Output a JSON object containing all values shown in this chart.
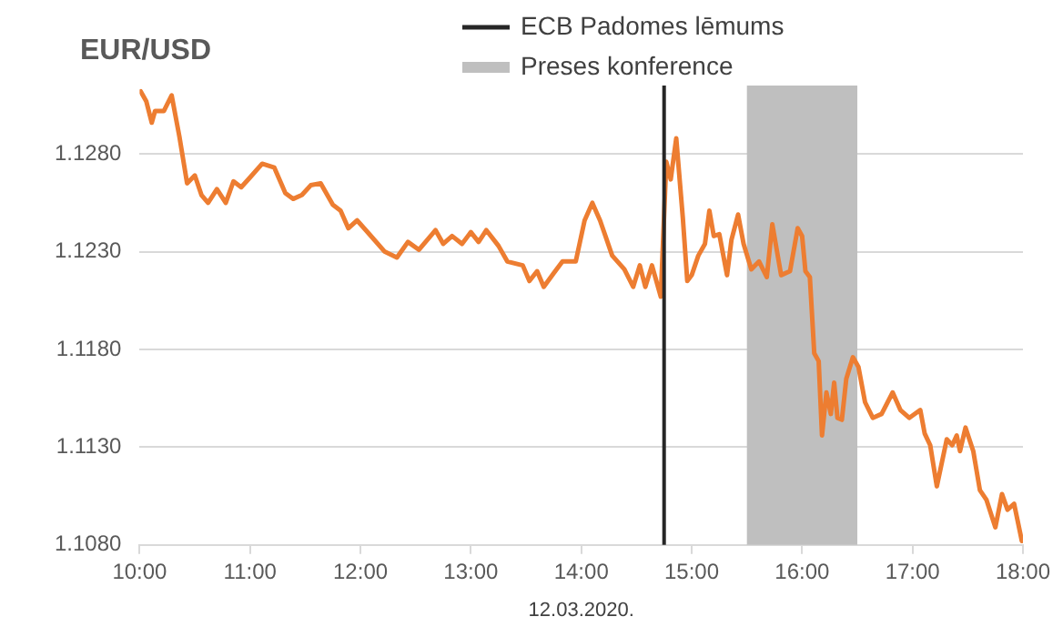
{
  "chart_data": {
    "type": "line",
    "title": "EUR/USD",
    "xlabel": "12.03.2020.",
    "x": [
      10.01,
      10.06,
      10.11,
      10.14,
      10.22,
      10.29,
      10.36,
      10.43,
      10.5,
      10.56,
      10.62,
      10.7,
      10.78,
      10.85,
      10.92,
      11.0,
      11.11,
      11.22,
      11.32,
      11.39,
      11.47,
      11.55,
      11.64,
      11.75,
      11.82,
      11.89,
      11.97,
      12.08,
      12.22,
      12.33,
      12.43,
      12.53,
      12.68,
      12.75,
      12.83,
      12.92,
      13.0,
      13.07,
      13.14,
      13.25,
      13.33,
      13.47,
      13.53,
      13.6,
      13.66,
      13.75,
      13.83,
      13.95,
      14.03,
      14.1,
      14.17,
      14.28,
      14.39,
      14.47,
      14.53,
      14.58,
      14.64,
      14.72,
      14.77,
      14.81,
      14.86,
      14.92,
      14.96,
      15.0,
      15.06,
      15.12,
      15.16,
      15.2,
      15.25,
      15.32,
      15.36,
      15.42,
      15.47,
      15.54,
      15.61,
      15.68,
      15.73,
      15.81,
      15.89,
      15.96,
      16.0,
      16.03,
      16.07,
      16.11,
      16.15,
      16.18,
      16.22,
      16.26,
      16.29,
      16.32,
      16.36,
      16.4,
      16.46,
      16.51,
      16.57,
      16.64,
      16.72,
      16.82,
      16.89,
      16.97,
      17.07,
      17.11,
      17.16,
      17.22,
      17.31,
      17.36,
      17.4,
      17.43,
      17.48,
      17.55,
      17.61,
      17.67,
      17.75,
      17.81,
      17.86,
      17.92,
      17.99
    ],
    "values": [
      1.1312,
      1.1307,
      1.1296,
      1.1302,
      1.1302,
      1.131,
      1.1289,
      1.1265,
      1.1269,
      1.1259,
      1.1255,
      1.1262,
      1.1255,
      1.1266,
      1.1263,
      1.1268,
      1.1275,
      1.1273,
      1.126,
      1.1257,
      1.1259,
      1.1264,
      1.1265,
      1.1254,
      1.1251,
      1.1242,
      1.1246,
      1.1239,
      1.123,
      1.1227,
      1.1235,
      1.1231,
      1.1241,
      1.1234,
      1.1238,
      1.1234,
      1.124,
      1.1235,
      1.1241,
      1.1233,
      1.1225,
      1.1223,
      1.1215,
      1.122,
      1.1212,
      1.1219,
      1.1225,
      1.1225,
      1.1246,
      1.1255,
      1.1246,
      1.1228,
      1.1221,
      1.1212,
      1.1223,
      1.1212,
      1.1223,
      1.1207,
      1.1276,
      1.1267,
      1.1288,
      1.1247,
      1.1215,
      1.1218,
      1.1228,
      1.1234,
      1.1251,
      1.1238,
      1.1239,
      1.1218,
      1.1236,
      1.1249,
      1.1234,
      1.1221,
      1.1225,
      1.1217,
      1.1244,
      1.1218,
      1.122,
      1.1242,
      1.1238,
      1.122,
      1.1217,
      1.1178,
      1.1174,
      1.1136,
      1.1158,
      1.1147,
      1.1163,
      1.1145,
      1.1144,
      1.1165,
      1.1176,
      1.1171,
      1.1153,
      1.1145,
      1.1147,
      1.1158,
      1.1149,
      1.1145,
      1.1149,
      1.1137,
      1.1131,
      1.111,
      1.1134,
      1.1131,
      1.1136,
      1.1128,
      1.114,
      1.1128,
      1.1108,
      1.1103,
      1.1089,
      1.1106,
      1.1098,
      1.1101,
      1.1082
    ],
    "color": "#ed7d31",
    "marker": "none",
    "xlim": [
      10,
      18
    ],
    "xticks": [
      {
        "value": 10,
        "label": "10:00"
      },
      {
        "value": 11,
        "label": "11:00"
      },
      {
        "value": 12,
        "label": "12:00"
      },
      {
        "value": 13,
        "label": "13:00"
      },
      {
        "value": 14,
        "label": "14:00"
      },
      {
        "value": 15,
        "label": "15:00"
      },
      {
        "value": 16,
        "label": "16:00"
      },
      {
        "value": 17,
        "label": "17:00"
      },
      {
        "value": 18,
        "label": "18:00"
      }
    ],
    "ylim": [
      1.108,
      1.1315
    ],
    "yticks": [
      {
        "value": 1.108,
        "label": "1.1080"
      },
      {
        "value": 1.113,
        "label": "1.1130"
      },
      {
        "value": 1.118,
        "label": "1.1180"
      },
      {
        "value": 1.123,
        "label": "1.1230"
      },
      {
        "value": 1.128,
        "label": "1.1280"
      }
    ],
    "grid": "y",
    "legend": "top",
    "ref_lines": [
      {
        "axis": "x",
        "value": 14.75,
        "label": "ECB Padomes lēmums",
        "color": "#262626"
      }
    ],
    "bands": [
      {
        "axis": "x",
        "from": 15.5,
        "to": 16.5,
        "label": "Preses konference",
        "color": "#bfbfbf"
      }
    ]
  }
}
